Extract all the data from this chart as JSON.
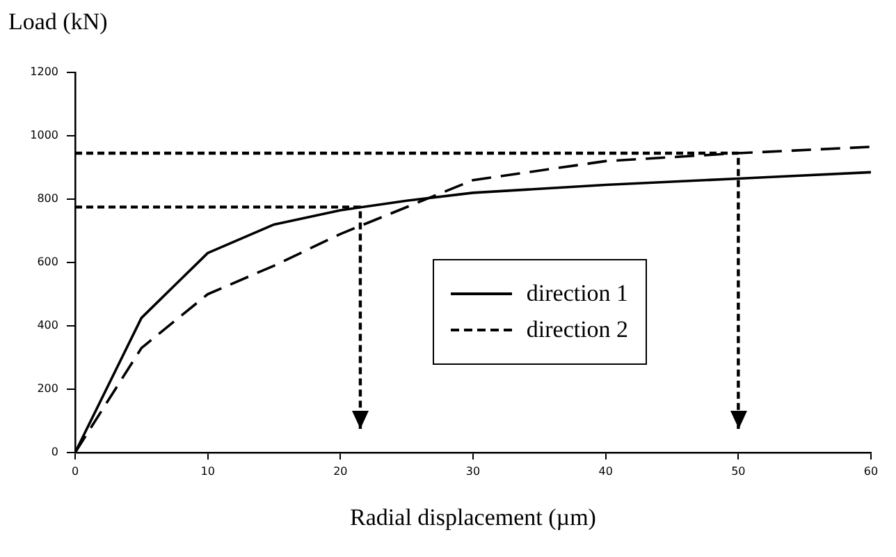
{
  "chart_data": {
    "type": "line",
    "xlabel": "Radial displacement (µm)",
    "ylabel": "Load (kN)",
    "xlim": [
      0,
      60
    ],
    "xticks": [
      0,
      10,
      20,
      30,
      40,
      50,
      60
    ],
    "ylim": [
      0,
      1200
    ],
    "yticks": [
      0,
      200,
      400,
      600,
      800,
      1000,
      1200
    ],
    "grid": false,
    "legend": "right",
    "marker": "none",
    "series": [
      {
        "name": "direction 1",
        "color": "#000000",
        "line_style": "solid",
        "x": [
          0,
          5,
          10,
          15,
          20,
          25,
          30,
          40,
          50,
          60
        ],
        "values": [
          0,
          425,
          630,
          720,
          765,
          795,
          820,
          845,
          865,
          885
        ]
      },
      {
        "name": "direction 2",
        "color": "#000000",
        "line_style": "dashed",
        "x": [
          0,
          5,
          10,
          15,
          20,
          30,
          40,
          50,
          60
        ],
        "values": [
          0,
          330,
          500,
          590,
          690,
          860,
          920,
          945,
          965
        ]
      },
      {
        "color": "#000000",
        "line_style": "dotted",
        "x": [
          0,
          21.5,
          21.5
        ],
        "values": [
          775,
          775,
          75
        ]
      },
      {
        "color": "#000000",
        "line_style": "dotted",
        "x": [
          0,
          45,
          50,
          50
        ],
        "values": [
          945,
          945,
          945,
          75
        ]
      }
    ]
  }
}
